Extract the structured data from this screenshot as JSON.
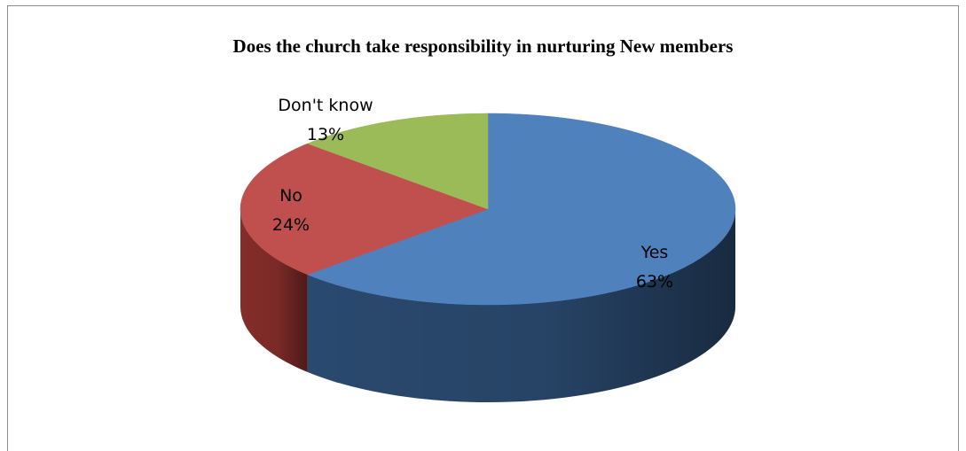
{
  "chart_data": {
    "type": "pie",
    "title": "Does the church take responsibility in nurturing New members",
    "slices": [
      {
        "label": "Yes",
        "value": 63,
        "percent_label": "63%",
        "color": "#4f81bd",
        "side_color": "#2c4d74"
      },
      {
        "label": "No",
        "value": 24,
        "percent_label": "24%",
        "color": "#c0504d",
        "side_color": "#8b2f2c"
      },
      {
        "label": "Don't know",
        "value": 13,
        "percent_label": "13%",
        "color": "#9bbb59",
        "side_color": "#6e8a3a"
      }
    ],
    "legend": "none",
    "style": "3d"
  }
}
